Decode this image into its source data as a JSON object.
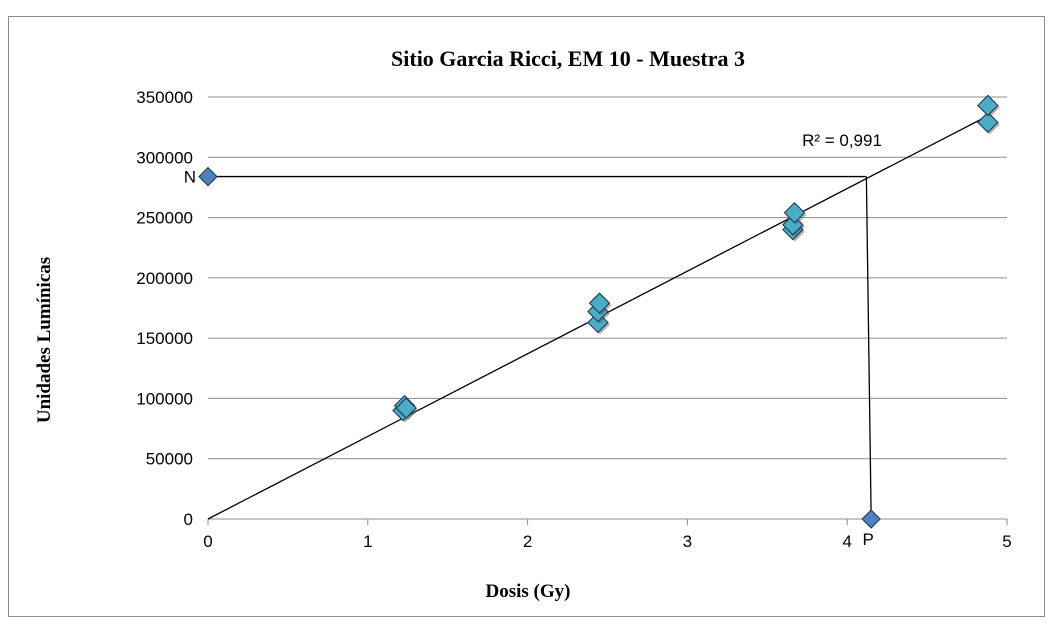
{
  "chart_data": {
    "type": "scatter",
    "title": "Sitio Garcia Ricci, EM 10 - Muestra 3",
    "xlabel": "Dosis (Gy)",
    "ylabel": "Unidades Lumínicas",
    "xlim": [
      0,
      5
    ],
    "ylim": [
      0,
      350000
    ],
    "x_ticks": [
      0,
      1,
      2,
      3,
      4,
      5
    ],
    "y_ticks": [
      0,
      50000,
      100000,
      150000,
      200000,
      250000,
      300000,
      350000
    ],
    "grid": "horizontal",
    "legend": "none",
    "series": [
      {
        "points": [
          {
            "x": 1.22,
            "y": 90000
          },
          {
            "x": 1.23,
            "y": 94000
          },
          {
            "x": 1.24,
            "y": 92000
          },
          {
            "x": 2.44,
            "y": 163000
          },
          {
            "x": 2.44,
            "y": 172000
          },
          {
            "x": 2.45,
            "y": 179000
          },
          {
            "x": 3.66,
            "y": 240000
          },
          {
            "x": 3.66,
            "y": 244000
          },
          {
            "x": 3.67,
            "y": 254000
          },
          {
            "x": 4.88,
            "y": 329000
          },
          {
            "x": 4.88,
            "y": 343000
          }
        ],
        "color": "#4bacc6"
      }
    ],
    "trendline": {
      "x": [
        0,
        4.86
      ],
      "y": [
        0,
        333000
      ],
      "r2_label": "R² = 0,991"
    },
    "markers": [
      {
        "label": "N",
        "x": 0,
        "y": 284000,
        "color": "#4f81bd"
      },
      {
        "label": "P",
        "x": 4.15,
        "y": 0,
        "color": "#4f81bd"
      }
    ],
    "guide_lines": [
      {
        "x": [
          0,
          4.12
        ],
        "y": [
          284000,
          284000
        ]
      },
      {
        "x": [
          4.12,
          4.15
        ],
        "y": [
          284000,
          0
        ]
      }
    ]
  }
}
